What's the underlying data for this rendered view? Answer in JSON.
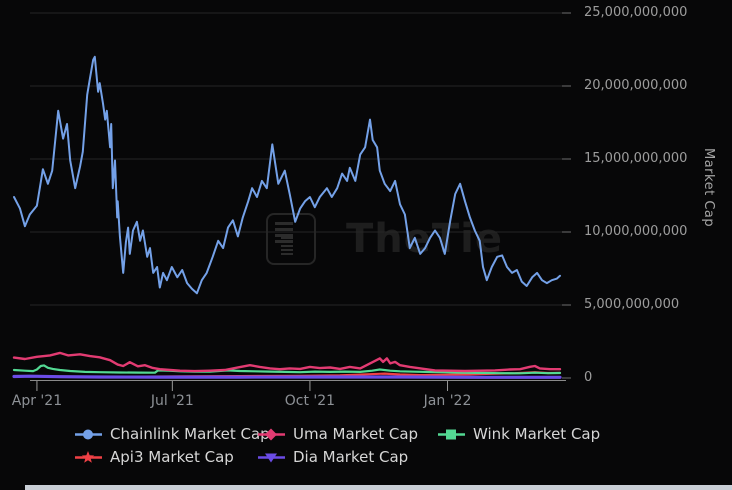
{
  "watermark": {
    "text": "TheTie",
    "icon": "document-icon"
  },
  "axis_colors": {
    "gridline": "#262626",
    "axis_line": "#8a8a8a",
    "tick": "#9a9a9a"
  },
  "chart_data": {
    "type": "line",
    "title": "",
    "xlabel": "",
    "ylabel": "Market Cap",
    "value_unit": "billions_usd",
    "ylim": [
      0,
      25000000000
    ],
    "x_range_note": "Mar 2021 to Mar 2022, daily data",
    "grid": "horizontal-only",
    "legend_position": "bottom",
    "y_gridlines": [
      {
        "label": "25,000,000,000",
        "value": 25
      },
      {
        "label": "20,000,000,000",
        "value": 20
      },
      {
        "label": "15,000,000,000",
        "value": 15
      },
      {
        "label": "10,000,000,000",
        "value": 10
      },
      {
        "label": "5,000,000,000",
        "value": 5
      },
      {
        "label": "0",
        "value": 0
      }
    ],
    "x_ticks": [
      {
        "label": "Apr '21",
        "pos": 0.042
      },
      {
        "label": "Jul '21",
        "pos": 0.29
      },
      {
        "label": "Oct '21",
        "pos": 0.542
      },
      {
        "label": "Jan '22",
        "pos": 0.794
      }
    ],
    "series": [
      {
        "name": "Chainlink Market Cap",
        "color": "#74A1E8",
        "marker": "circle",
        "width": 2,
        "points": [
          [
            0,
            12.4
          ],
          [
            0.011,
            11.6
          ],
          [
            0.02,
            10.4
          ],
          [
            0.029,
            11.2
          ],
          [
            0.042,
            11.8
          ],
          [
            0.053,
            14.3
          ],
          [
            0.062,
            13.3
          ],
          [
            0.07,
            14.2
          ],
          [
            0.081,
            18.3
          ],
          [
            0.09,
            16.4
          ],
          [
            0.097,
            17.4
          ],
          [
            0.103,
            14.9
          ],
          [
            0.112,
            13
          ],
          [
            0.121,
            14.5
          ],
          [
            0.126,
            15.5
          ],
          [
            0.134,
            19.4
          ],
          [
            0.139,
            20.5
          ],
          [
            0.145,
            21.8
          ],
          [
            0.148,
            22
          ],
          [
            0.154,
            19.6
          ],
          [
            0.157,
            20.2
          ],
          [
            0.163,
            18.8
          ],
          [
            0.167,
            17.7
          ],
          [
            0.17,
            18.3
          ],
          [
            0.176,
            15.8
          ],
          [
            0.178,
            17.4
          ],
          [
            0.181,
            13
          ],
          [
            0.185,
            14.9
          ],
          [
            0.189,
            11
          ],
          [
            0.19,
            12.1
          ],
          [
            0.194,
            9.7
          ],
          [
            0.2,
            7.2
          ],
          [
            0.205,
            9.3
          ],
          [
            0.209,
            10.3
          ],
          [
            0.212,
            8.5
          ],
          [
            0.218,
            10.1
          ],
          [
            0.225,
            10.7
          ],
          [
            0.231,
            9.4
          ],
          [
            0.236,
            10.1
          ],
          [
            0.244,
            8.3
          ],
          [
            0.249,
            8.9
          ],
          [
            0.255,
            7.2
          ],
          [
            0.262,
            7.6
          ],
          [
            0.267,
            6.2
          ],
          [
            0.273,
            7.2
          ],
          [
            0.28,
            6.7
          ],
          [
            0.289,
            7.6
          ],
          [
            0.299,
            6.9
          ],
          [
            0.308,
            7.4
          ],
          [
            0.317,
            6.5
          ],
          [
            0.326,
            6.1
          ],
          [
            0.335,
            5.8
          ],
          [
            0.344,
            6.7
          ],
          [
            0.353,
            7.2
          ],
          [
            0.364,
            8.3
          ],
          [
            0.374,
            9.4
          ],
          [
            0.383,
            8.9
          ],
          [
            0.392,
            10.3
          ],
          [
            0.401,
            10.8
          ],
          [
            0.41,
            9.7
          ],
          [
            0.419,
            11
          ],
          [
            0.429,
            12.1
          ],
          [
            0.436,
            13
          ],
          [
            0.445,
            12.4
          ],
          [
            0.454,
            13.5
          ],
          [
            0.463,
            13
          ],
          [
            0.473,
            16
          ],
          [
            0.484,
            13.3
          ],
          [
            0.496,
            14.2
          ],
          [
            0.505,
            12.6
          ],
          [
            0.515,
            10.7
          ],
          [
            0.524,
            11.6
          ],
          [
            0.533,
            12.1
          ],
          [
            0.542,
            12.4
          ],
          [
            0.551,
            11.7
          ],
          [
            0.56,
            12.4
          ],
          [
            0.573,
            13
          ],
          [
            0.582,
            12.4
          ],
          [
            0.592,
            13
          ],
          [
            0.601,
            14
          ],
          [
            0.61,
            13.5
          ],
          [
            0.615,
            14.4
          ],
          [
            0.625,
            13.5
          ],
          [
            0.634,
            15.3
          ],
          [
            0.643,
            15.8
          ],
          [
            0.652,
            17.7
          ],
          [
            0.657,
            16.3
          ],
          [
            0.665,
            15.8
          ],
          [
            0.67,
            14.2
          ],
          [
            0.679,
            13.3
          ],
          [
            0.689,
            12.8
          ],
          [
            0.698,
            13.5
          ],
          [
            0.707,
            11.9
          ],
          [
            0.716,
            11.2
          ],
          [
            0.725,
            8.9
          ],
          [
            0.734,
            9.6
          ],
          [
            0.744,
            8.5
          ],
          [
            0.753,
            8.9
          ],
          [
            0.762,
            9.6
          ],
          [
            0.771,
            10.1
          ],
          [
            0.78,
            9.6
          ],
          [
            0.789,
            8.5
          ],
          [
            0.799,
            10.8
          ],
          [
            0.808,
            12.6
          ],
          [
            0.817,
            13.3
          ],
          [
            0.826,
            12.1
          ],
          [
            0.835,
            11
          ],
          [
            0.844,
            10.1
          ],
          [
            0.853,
            9.4
          ],
          [
            0.859,
            7.6
          ],
          [
            0.866,
            6.7
          ],
          [
            0.875,
            7.6
          ],
          [
            0.885,
            8.3
          ],
          [
            0.894,
            8.4
          ],
          [
            0.903,
            7.6
          ],
          [
            0.912,
            7.2
          ],
          [
            0.921,
            7.4
          ],
          [
            0.93,
            6.6
          ],
          [
            0.939,
            6.3
          ],
          [
            0.949,
            6.9
          ],
          [
            0.958,
            7.2
          ],
          [
            0.967,
            6.7
          ],
          [
            0.976,
            6.5
          ],
          [
            0.985,
            6.7
          ],
          [
            0.994,
            6.8
          ],
          [
            1,
            7
          ]
        ]
      },
      {
        "name": "Uma Market Cap",
        "color": "#E23B72",
        "marker": "diamond",
        "width": 2.4,
        "points": [
          [
            0,
            1.4
          ],
          [
            0.02,
            1.3
          ],
          [
            0.042,
            1.45
          ],
          [
            0.066,
            1.55
          ],
          [
            0.084,
            1.72
          ],
          [
            0.099,
            1.55
          ],
          [
            0.121,
            1.62
          ],
          [
            0.139,
            1.5
          ],
          [
            0.157,
            1.42
          ],
          [
            0.176,
            1.22
          ],
          [
            0.19,
            0.92
          ],
          [
            0.2,
            0.82
          ],
          [
            0.212,
            1.08
          ],
          [
            0.227,
            0.8
          ],
          [
            0.24,
            0.88
          ],
          [
            0.253,
            0.7
          ],
          [
            0.267,
            0.6
          ],
          [
            0.286,
            0.55
          ],
          [
            0.304,
            0.5
          ],
          [
            0.331,
            0.47
          ],
          [
            0.359,
            0.5
          ],
          [
            0.386,
            0.55
          ],
          [
            0.414,
            0.75
          ],
          [
            0.432,
            0.88
          ],
          [
            0.45,
            0.76
          ],
          [
            0.469,
            0.66
          ],
          [
            0.487,
            0.6
          ],
          [
            0.505,
            0.66
          ],
          [
            0.524,
            0.62
          ],
          [
            0.542,
            0.76
          ],
          [
            0.56,
            0.68
          ],
          [
            0.579,
            0.72
          ],
          [
            0.597,
            0.62
          ],
          [
            0.615,
            0.76
          ],
          [
            0.634,
            0.66
          ],
          [
            0.652,
            1
          ],
          [
            0.67,
            1.34
          ],
          [
            0.676,
            1.1
          ],
          [
            0.683,
            1.34
          ],
          [
            0.689,
            1
          ],
          [
            0.698,
            1.1
          ],
          [
            0.707,
            0.88
          ],
          [
            0.725,
            0.76
          ],
          [
            0.771,
            0.52
          ],
          [
            0.799,
            0.5
          ],
          [
            0.826,
            0.48
          ],
          [
            0.853,
            0.5
          ],
          [
            0.881,
            0.52
          ],
          [
            0.908,
            0.58
          ],
          [
            0.927,
            0.6
          ],
          [
            0.945,
            0.77
          ],
          [
            0.954,
            0.82
          ],
          [
            0.963,
            0.66
          ],
          [
            0.982,
            0.6
          ],
          [
            1,
            0.6
          ]
        ]
      },
      {
        "name": "Wink Market Cap",
        "color": "#53D993",
        "marker": "square",
        "width": 2.2,
        "points": [
          [
            0,
            0.55
          ],
          [
            0.02,
            0.5
          ],
          [
            0.035,
            0.47
          ],
          [
            0.042,
            0.58
          ],
          [
            0.049,
            0.82
          ],
          [
            0.055,
            0.86
          ],
          [
            0.062,
            0.7
          ],
          [
            0.071,
            0.62
          ],
          [
            0.084,
            0.55
          ],
          [
            0.103,
            0.48
          ],
          [
            0.13,
            0.42
          ],
          [
            0.157,
            0.4
          ],
          [
            0.194,
            0.38
          ],
          [
            0.231,
            0.37
          ],
          [
            0.258,
            0.36
          ],
          [
            0.264,
            0.52
          ],
          [
            0.282,
            0.5
          ],
          [
            0.304,
            0.46
          ],
          [
            0.331,
            0.43
          ],
          [
            0.359,
            0.44
          ],
          [
            0.392,
            0.52
          ],
          [
            0.414,
            0.48
          ],
          [
            0.441,
            0.46
          ],
          [
            0.469,
            0.44
          ],
          [
            0.496,
            0.42
          ],
          [
            0.524,
            0.4
          ],
          [
            0.551,
            0.44
          ],
          [
            0.579,
            0.42
          ],
          [
            0.606,
            0.44
          ],
          [
            0.634,
            0.42
          ],
          [
            0.656,
            0.5
          ],
          [
            0.67,
            0.58
          ],
          [
            0.689,
            0.5
          ],
          [
            0.707,
            0.46
          ],
          [
            0.734,
            0.43
          ],
          [
            0.762,
            0.41
          ],
          [
            0.789,
            0.39
          ],
          [
            0.817,
            0.37
          ],
          [
            0.853,
            0.35
          ],
          [
            0.89,
            0.33
          ],
          [
            0.927,
            0.32
          ],
          [
            0.954,
            0.36
          ],
          [
            0.978,
            0.33
          ],
          [
            1,
            0.34
          ]
        ]
      },
      {
        "name": "Api3 Market Cap",
        "color": "#F04146",
        "marker": "star",
        "width": 2.2,
        "points": [
          [
            0,
            0.12
          ],
          [
            0.084,
            0.1
          ],
          [
            0.194,
            0.09
          ],
          [
            0.304,
            0.11
          ],
          [
            0.414,
            0.13
          ],
          [
            0.524,
            0.15
          ],
          [
            0.597,
            0.18
          ],
          [
            0.652,
            0.26
          ],
          [
            0.679,
            0.3
          ],
          [
            0.707,
            0.24
          ],
          [
            0.744,
            0.2
          ],
          [
            0.789,
            0.22
          ],
          [
            0.835,
            0.25
          ],
          [
            0.881,
            0.3
          ],
          [
            0.918,
            0.33
          ],
          [
            0.954,
            0.4
          ],
          [
            0.978,
            0.34
          ],
          [
            1,
            0.35
          ]
        ]
      },
      {
        "name": "Dia Market Cap",
        "color": "#6B4CE6",
        "marker": "triangle-down",
        "width": 3.2,
        "points": [
          [
            0,
            0.1
          ],
          [
            0.029,
            0.12
          ],
          [
            0.084,
            0.09
          ],
          [
            0.157,
            0.07
          ],
          [
            0.267,
            0.06
          ],
          [
            0.414,
            0.06
          ],
          [
            0.56,
            0.07
          ],
          [
            0.707,
            0.07
          ],
          [
            0.853,
            0.05
          ],
          [
            1,
            0.05
          ]
        ]
      }
    ]
  }
}
